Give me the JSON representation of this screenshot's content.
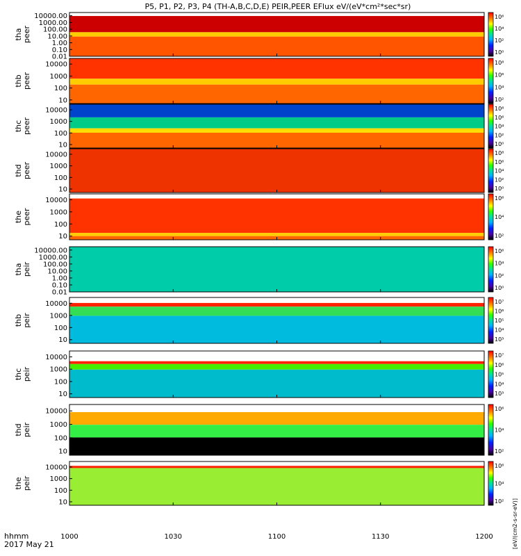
{
  "title": "P5, P1, P2, P3, P4 (TH-A,B,C,D,E) PEIR,PEER EFlux eV/(eV*cm²*sec*sr)",
  "footer": {
    "unit_label": "hhmm",
    "date_label": "2017 May 21"
  },
  "colorbar_units": "[eV/(cm2-s-sr-eV)]",
  "chart_data": {
    "type": "heatmap",
    "title": "P5, P1, P2, P3, P4 (TH-A,B,C,D,E) PEIR,PEER EFlux eV/(eV*cm²*sec*sr)",
    "x_range": [
      "10:00",
      "12:00"
    ],
    "x_ticks": [
      "1000",
      "1030",
      "1100",
      "1130",
      "1200"
    ],
    "y_scale": "log",
    "colormap": "rainbow",
    "panels": [
      {
        "probe": "tha",
        "species": "peer",
        "ylabel": [
          "tha",
          "peer"
        ],
        "ylim": [
          0.01,
          30000
        ],
        "yticks": [
          "10000.00",
          "1000.00",
          "100.00",
          "10.00",
          "1.00",
          "0.10",
          "0.01"
        ],
        "cbar_ticks": [
          "10⁶",
          "10⁴",
          "10²",
          "10⁰"
        ]
      },
      {
        "probe": "thb",
        "species": "peer",
        "ylabel": [
          "thb",
          "peer"
        ],
        "ylim": [
          5,
          30000
        ],
        "yticks": [
          "10000",
          "1000",
          "100",
          "10"
        ],
        "cbar_ticks": [
          "10⁸",
          "10⁶",
          "10⁴",
          "10²"
        ]
      },
      {
        "probe": "thc",
        "species": "peer",
        "ylabel": [
          "thc",
          "peer"
        ],
        "ylim": [
          5,
          30000
        ],
        "yticks": [
          "10000",
          "1000",
          "100",
          "10"
        ],
        "cbar_ticks": [
          "10⁸",
          "10⁶",
          "10⁴",
          "10²",
          "10⁰"
        ]
      },
      {
        "probe": "thd",
        "species": "peer",
        "ylabel": [
          "thd",
          "peer"
        ],
        "ylim": [
          5,
          30000
        ],
        "yticks": [
          "10000",
          "1000",
          "100",
          "10"
        ],
        "cbar_ticks": [
          "10⁸",
          "10⁶",
          "10⁴",
          "10²",
          "10⁰"
        ]
      },
      {
        "probe": "the",
        "species": "peer",
        "ylabel": [
          "the",
          "peer"
        ],
        "ylim": [
          5,
          30000
        ],
        "yticks": [
          "10000",
          "1000",
          "100",
          "10"
        ],
        "cbar_ticks": [
          "10⁶",
          "10⁴",
          "10²"
        ]
      },
      {
        "probe": "tha",
        "species": "peir",
        "ylabel": [
          "tha",
          "peir"
        ],
        "ylim": [
          0.01,
          30000
        ],
        "yticks": [
          "10000.00",
          "1000.00",
          "100.00",
          "10.00",
          "1.00",
          "0.10",
          "0.01"
        ],
        "cbar_ticks": [
          "10⁶",
          "10⁴",
          "10²",
          "10⁰"
        ]
      },
      {
        "probe": "thb",
        "species": "peir",
        "ylabel": [
          "thb",
          "peir"
        ],
        "ylim": [
          5,
          30000
        ],
        "yticks": [
          "10000",
          "1000",
          "100",
          "10"
        ],
        "cbar_ticks": [
          "10⁷",
          "10⁶",
          "10⁵",
          "10⁴",
          "10³"
        ]
      },
      {
        "probe": "thc",
        "species": "peir",
        "ylabel": [
          "thc",
          "peir"
        ],
        "ylim": [
          5,
          30000
        ],
        "yticks": [
          "10000",
          "1000",
          "100",
          "10"
        ],
        "cbar_ticks": [
          "10⁷",
          "10⁶",
          "10⁵",
          "10⁴",
          "10³"
        ]
      },
      {
        "probe": "thd",
        "species": "peir",
        "ylabel": [
          "thd",
          "peir"
        ],
        "ylim": [
          5,
          30000
        ],
        "yticks": [
          "10000",
          "1000",
          "100",
          "10"
        ],
        "cbar_ticks": [
          "10⁶",
          "10⁴",
          "10²"
        ]
      },
      {
        "probe": "the",
        "species": "peir",
        "ylabel": [
          "the",
          "peir"
        ],
        "ylim": [
          5,
          30000
        ],
        "yticks": [
          "10000",
          "1000",
          "100",
          "10"
        ],
        "cbar_ticks": [
          "10⁶",
          "10⁴",
          "10²"
        ]
      }
    ]
  }
}
